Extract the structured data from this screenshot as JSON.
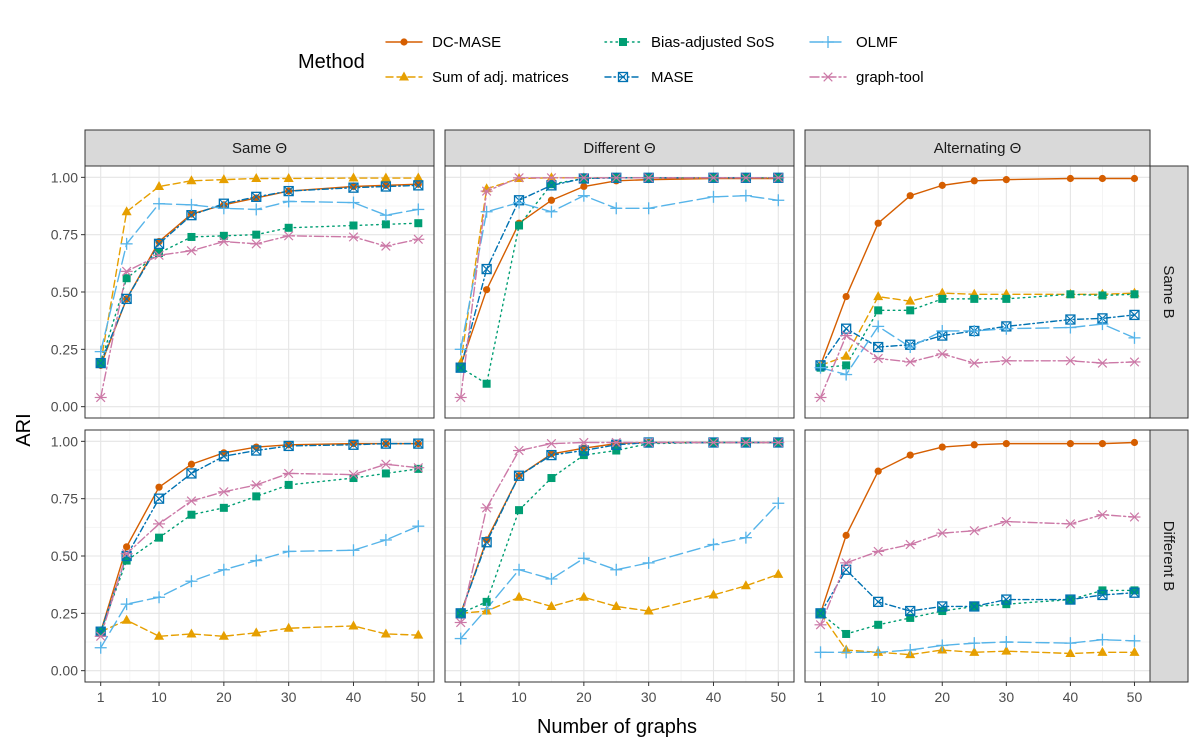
{
  "chart_data": {
    "type": "line",
    "xlabel": "Number of graphs",
    "ylabel": "ARI",
    "legend_title": "Method",
    "legend_position": "top",
    "grid": true,
    "x_ticks": [
      "1",
      "10",
      "20",
      "30",
      "40",
      "50"
    ],
    "x_tick_values": [
      1,
      10,
      20,
      30,
      40,
      50
    ],
    "y_ticks": [
      "0.00",
      "0.25",
      "0.50",
      "0.75",
      "1.00"
    ],
    "y_tick_values": [
      0,
      0.25,
      0.5,
      0.75,
      1.0
    ],
    "xlim": [
      1,
      50
    ],
    "ylim": [
      0,
      1
    ],
    "x": [
      1,
      5,
      10,
      15,
      20,
      25,
      30,
      40,
      45,
      50
    ],
    "col_facets": [
      "Same Θ",
      "Different Θ",
      "Alternating Θ"
    ],
    "row_facets": [
      "Same B",
      "Different B"
    ],
    "methods": [
      {
        "name": "DC-MASE",
        "color": "#D55E00",
        "marker": "circle",
        "dash": ""
      },
      {
        "name": "Sum of adj. matrices",
        "color": "#E69F00",
        "marker": "triangle",
        "dash": "7,4"
      },
      {
        "name": "Bias-adjusted SoS",
        "color": "#009E73",
        "marker": "square",
        "dash": "1.5,4"
      },
      {
        "name": "MASE",
        "color": "#0072B2",
        "marker": "boxx",
        "dash": "6,3,1.5,3"
      },
      {
        "name": "OLMF",
        "color": "#56B4E9",
        "marker": "plus",
        "dash": "13,5"
      },
      {
        "name": "graph-tool",
        "color": "#CC79A7",
        "marker": "asterisk",
        "dash": "9,3,2,3"
      }
    ],
    "panels": [
      {
        "row": 0,
        "col": 0,
        "series": {
          "DC-MASE": [
            0.18,
            0.47,
            0.72,
            0.84,
            0.88,
            0.91,
            0.94,
            0.96,
            0.965,
            0.97
          ],
          "Sum of adj. matrices": [
            0.19,
            0.85,
            0.96,
            0.985,
            0.99,
            0.995,
            0.995,
            0.997,
            0.997,
            0.997
          ],
          "Bias-adjusted SoS": [
            0.19,
            0.56,
            0.67,
            0.74,
            0.745,
            0.75,
            0.78,
            0.79,
            0.795,
            0.8
          ],
          "MASE": [
            0.19,
            0.47,
            0.71,
            0.835,
            0.885,
            0.915,
            0.94,
            0.955,
            0.96,
            0.965
          ],
          "OLMF": [
            0.24,
            0.71,
            0.885,
            0.88,
            0.865,
            0.86,
            0.895,
            0.89,
            0.835,
            0.86
          ],
          "graph-tool": [
            0.04,
            0.59,
            0.66,
            0.68,
            0.72,
            0.71,
            0.745,
            0.74,
            0.7,
            0.73
          ]
        }
      },
      {
        "row": 0,
        "col": 1,
        "series": {
          "DC-MASE": [
            0.18,
            0.51,
            0.8,
            0.9,
            0.96,
            0.985,
            0.99,
            0.995,
            0.995,
            0.995
          ],
          "Sum of adj. matrices": [
            0.19,
            0.95,
            0.995,
            0.998,
            0.998,
            0.998,
            0.998,
            0.998,
            0.998,
            0.998
          ],
          "Bias-adjusted SoS": [
            0.17,
            0.1,
            0.79,
            0.97,
            0.995,
            0.998,
            0.998,
            0.998,
            0.998,
            0.998
          ],
          "MASE": [
            0.17,
            0.6,
            0.9,
            0.965,
            0.995,
            0.998,
            0.998,
            0.998,
            0.998,
            0.998
          ],
          "OLMF": [
            0.25,
            0.85,
            0.89,
            0.85,
            0.92,
            0.865,
            0.865,
            0.915,
            0.92,
            0.9
          ],
          "graph-tool": [
            0.04,
            0.94,
            0.998,
            0.998,
            0.998,
            0.998,
            0.998,
            0.998,
            0.998,
            0.998
          ]
        }
      },
      {
        "row": 0,
        "col": 2,
        "series": {
          "DC-MASE": [
            0.18,
            0.48,
            0.8,
            0.92,
            0.965,
            0.985,
            0.99,
            0.995,
            0.995,
            0.995
          ],
          "Sum of adj. matrices": [
            0.18,
            0.22,
            0.48,
            0.46,
            0.495,
            0.49,
            0.49,
            0.49,
            0.49,
            0.495
          ],
          "Bias-adjusted SoS": [
            0.17,
            0.18,
            0.42,
            0.42,
            0.47,
            0.47,
            0.47,
            0.49,
            0.485,
            0.49
          ],
          "MASE": [
            0.18,
            0.34,
            0.26,
            0.27,
            0.31,
            0.33,
            0.35,
            0.38,
            0.385,
            0.4
          ],
          "OLMF": [
            0.17,
            0.14,
            0.35,
            0.26,
            0.33,
            0.33,
            0.34,
            0.345,
            0.36,
            0.3
          ],
          "graph-tool": [
            0.04,
            0.31,
            0.21,
            0.195,
            0.23,
            0.19,
            0.2,
            0.2,
            0.19,
            0.195
          ]
        }
      },
      {
        "row": 1,
        "col": 0,
        "series": {
          "DC-MASE": [
            0.17,
            0.54,
            0.8,
            0.9,
            0.95,
            0.975,
            0.985,
            0.99,
            0.99,
            0.99
          ],
          "Sum of adj. matrices": [
            0.17,
            0.22,
            0.15,
            0.16,
            0.15,
            0.165,
            0.185,
            0.195,
            0.16,
            0.155
          ],
          "Bias-adjusted SoS": [
            0.17,
            0.48,
            0.58,
            0.68,
            0.71,
            0.76,
            0.81,
            0.84,
            0.86,
            0.88
          ],
          "MASE": [
            0.17,
            0.5,
            0.75,
            0.86,
            0.935,
            0.96,
            0.98,
            0.985,
            0.99,
            0.99
          ],
          "OLMF": [
            0.1,
            0.29,
            0.32,
            0.39,
            0.44,
            0.48,
            0.52,
            0.525,
            0.57,
            0.63
          ],
          "graph-tool": [
            0.15,
            0.51,
            0.64,
            0.74,
            0.78,
            0.81,
            0.86,
            0.855,
            0.9,
            0.885
          ]
        }
      },
      {
        "row": 1,
        "col": 1,
        "series": {
          "DC-MASE": [
            0.25,
            0.57,
            0.85,
            0.945,
            0.97,
            0.99,
            0.995,
            0.995,
            0.995,
            0.995
          ],
          "Sum of adj. matrices": [
            0.25,
            0.26,
            0.32,
            0.28,
            0.32,
            0.28,
            0.26,
            0.33,
            0.37,
            0.42
          ],
          "Bias-adjusted SoS": [
            0.25,
            0.3,
            0.7,
            0.84,
            0.94,
            0.96,
            0.99,
            0.995,
            0.995,
            0.995
          ],
          "MASE": [
            0.25,
            0.56,
            0.85,
            0.94,
            0.96,
            0.985,
            0.995,
            0.995,
            0.995,
            0.995
          ],
          "OLMF": [
            0.14,
            0.27,
            0.44,
            0.4,
            0.49,
            0.44,
            0.47,
            0.55,
            0.58,
            0.73
          ],
          "graph-tool": [
            0.21,
            0.71,
            0.96,
            0.99,
            0.995,
            0.995,
            0.995,
            0.995,
            0.995,
            0.995
          ]
        }
      },
      {
        "row": 1,
        "col": 2,
        "series": {
          "DC-MASE": [
            0.25,
            0.59,
            0.87,
            0.94,
            0.975,
            0.985,
            0.99,
            0.99,
            0.99,
            0.995
          ],
          "Sum of adj. matrices": [
            0.25,
            0.09,
            0.08,
            0.07,
            0.09,
            0.08,
            0.085,
            0.075,
            0.08,
            0.08
          ],
          "Bias-adjusted SoS": [
            0.25,
            0.16,
            0.2,
            0.23,
            0.26,
            0.28,
            0.29,
            0.31,
            0.35,
            0.35
          ],
          "MASE": [
            0.25,
            0.44,
            0.3,
            0.26,
            0.28,
            0.28,
            0.31,
            0.31,
            0.33,
            0.34
          ],
          "OLMF": [
            0.08,
            0.08,
            0.08,
            0.09,
            0.11,
            0.12,
            0.125,
            0.12,
            0.135,
            0.13
          ],
          "graph-tool": [
            0.2,
            0.47,
            0.52,
            0.55,
            0.6,
            0.61,
            0.65,
            0.64,
            0.68,
            0.67
          ]
        }
      }
    ]
  }
}
